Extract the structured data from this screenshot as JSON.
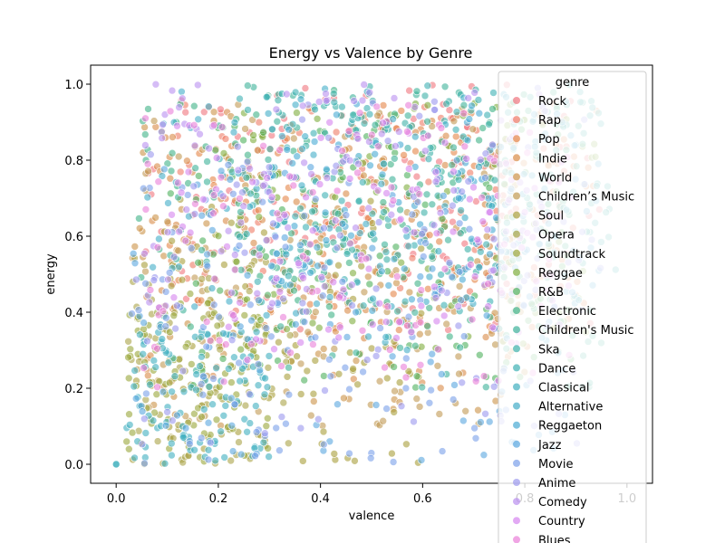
{
  "chart_data": {
    "type": "scatter",
    "title": "Energy vs Valence by Genre",
    "xlabel": "valence",
    "ylabel": "energy",
    "xlim": [
      -0.05,
      1.05
    ],
    "ylim": [
      -0.05,
      1.05
    ],
    "xticks": [
      0.0,
      0.2,
      0.4,
      0.6,
      0.8,
      1.0
    ],
    "yticks": [
      0.0,
      0.2,
      0.4,
      0.6,
      0.8,
      1.0
    ],
    "xtick_labels": [
      "0.0",
      "0.2",
      "0.4",
      "0.6",
      "0.8",
      "1.0"
    ],
    "ytick_labels": [
      "0.0",
      "0.2",
      "0.4",
      "0.6",
      "0.8",
      "1.0"
    ],
    "grid": false,
    "legend": {
      "title": "genre",
      "placement": "top-right",
      "entries": [
        {
          "name": "Rock",
          "color": "#f0747d"
        },
        {
          "name": "Rap",
          "color": "#ef7b65"
        },
        {
          "name": "Pop",
          "color": "#e48548"
        },
        {
          "name": "Indie",
          "color": "#d98b47"
        },
        {
          "name": "World",
          "color": "#cc9247"
        },
        {
          "name": "Children’s Music",
          "color": "#c19a53"
        },
        {
          "name": "Soul",
          "color": "#a99e3b"
        },
        {
          "name": "Opera",
          "color": "#aaa447"
        },
        {
          "name": "Soundtrack",
          "color": "#9aa63a"
        },
        {
          "name": "Reggae",
          "color": "#7fae3d"
        },
        {
          "name": "R&B",
          "color": "#4fb05e"
        },
        {
          "name": "Electronic",
          "color": "#3fb287"
        },
        {
          "name": "Children's Music",
          "color": "#3db29a"
        },
        {
          "name": "Ska",
          "color": "#3db1a9"
        },
        {
          "name": "Dance",
          "color": "#3eb1b4"
        },
        {
          "name": "Classical",
          "color": "#40afbf"
        },
        {
          "name": "Alternative",
          "color": "#43adc8"
        },
        {
          "name": "Reggaeton",
          "color": "#48aad3"
        },
        {
          "name": "Jazz",
          "color": "#5aa6e0"
        },
        {
          "name": "Movie",
          "color": "#7aa0ea"
        },
        {
          "name": "Anime",
          "color": "#9b98ee"
        },
        {
          "name": "Comedy",
          "color": "#b98ff0"
        },
        {
          "name": "Country",
          "color": "#d684ef"
        },
        {
          "name": "Blues",
          "color": "#ea7fd8"
        }
      ]
    },
    "series_distribution": [
      {
        "name": "Rock",
        "x_range": [
          0.05,
          0.95
        ],
        "y_range": [
          0.35,
          1.0
        ],
        "count": 120
      },
      {
        "name": "Rap",
        "x_range": [
          0.1,
          0.9
        ],
        "y_range": [
          0.4,
          0.95
        ],
        "count": 120
      },
      {
        "name": "Pop",
        "x_range": [
          0.1,
          0.95
        ],
        "y_range": [
          0.35,
          0.95
        ],
        "count": 120
      },
      {
        "name": "Indie",
        "x_range": [
          0.05,
          0.85
        ],
        "y_range": [
          0.2,
          0.95
        ],
        "count": 110
      },
      {
        "name": "World",
        "x_range": [
          0.03,
          0.8
        ],
        "y_range": [
          0.1,
          0.95
        ],
        "count": 110
      },
      {
        "name": "Children’s Music",
        "x_range": [
          0.03,
          0.8
        ],
        "y_range": [
          0.1,
          0.95
        ],
        "count": 110
      },
      {
        "name": "Soul",
        "x_range": [
          0.03,
          0.6
        ],
        "y_range": [
          0.0,
          0.7
        ],
        "count": 110
      },
      {
        "name": "Opera",
        "x_range": [
          0.02,
          0.35
        ],
        "y_range": [
          0.0,
          0.55
        ],
        "count": 90
      },
      {
        "name": "Soundtrack",
        "x_range": [
          0.02,
          0.3
        ],
        "y_range": [
          0.0,
          0.45
        ],
        "count": 110
      },
      {
        "name": "Reggae",
        "x_range": [
          0.2,
          0.95
        ],
        "y_range": [
          0.3,
          0.95
        ],
        "count": 110
      },
      {
        "name": "R&B",
        "x_range": [
          0.1,
          0.9
        ],
        "y_range": [
          0.2,
          0.9
        ],
        "count": 110
      },
      {
        "name": "Electronic",
        "x_range": [
          0.03,
          0.9
        ],
        "y_range": [
          0.3,
          1.0
        ],
        "count": 130
      },
      {
        "name": "Children's Music",
        "x_range": [
          0.1,
          0.95
        ],
        "y_range": [
          0.2,
          1.0
        ],
        "count": 110
      },
      {
        "name": "Ska",
        "x_range": [
          0.3,
          0.98
        ],
        "y_range": [
          0.5,
          1.0
        ],
        "count": 110
      },
      {
        "name": "Dance",
        "x_range": [
          0.2,
          0.98
        ],
        "y_range": [
          0.4,
          1.0
        ],
        "count": 110
      },
      {
        "name": "Classical",
        "x_range": [
          0.02,
          0.3
        ],
        "y_range": [
          0.0,
          0.35
        ],
        "count": 110
      },
      {
        "name": "Alternative",
        "x_range": [
          0.05,
          0.9
        ],
        "y_range": [
          0.3,
          1.0
        ],
        "count": 110
      },
      {
        "name": "Reggaeton",
        "x_range": [
          0.3,
          0.95
        ],
        "y_range": [
          0.4,
          0.95
        ],
        "count": 110
      },
      {
        "name": "Jazz",
        "x_range": [
          0.03,
          0.9
        ],
        "y_range": [
          0.0,
          0.8
        ],
        "count": 110
      },
      {
        "name": "Movie",
        "x_range": [
          0.03,
          0.8
        ],
        "y_range": [
          0.0,
          0.8
        ],
        "count": 110
      },
      {
        "name": "Anime",
        "x_range": [
          0.03,
          0.95
        ],
        "y_range": [
          0.05,
          1.0
        ],
        "count": 110
      },
      {
        "name": "Comedy",
        "x_range": [
          0.05,
          0.85
        ],
        "y_range": [
          0.4,
          1.0
        ],
        "count": 110
      },
      {
        "name": "Country",
        "x_range": [
          0.1,
          0.9
        ],
        "y_range": [
          0.3,
          0.9
        ],
        "count": 110
      },
      {
        "name": "Blues",
        "x_range": [
          0.05,
          0.9
        ],
        "y_range": [
          0.2,
          0.95
        ],
        "count": 110
      }
    ],
    "extra_points": [
      {
        "x": 0.0,
        "y": 0.0,
        "series": "Dance"
      },
      {
        "x": 0.0,
        "y": 0.0,
        "series": "Classical"
      }
    ]
  }
}
